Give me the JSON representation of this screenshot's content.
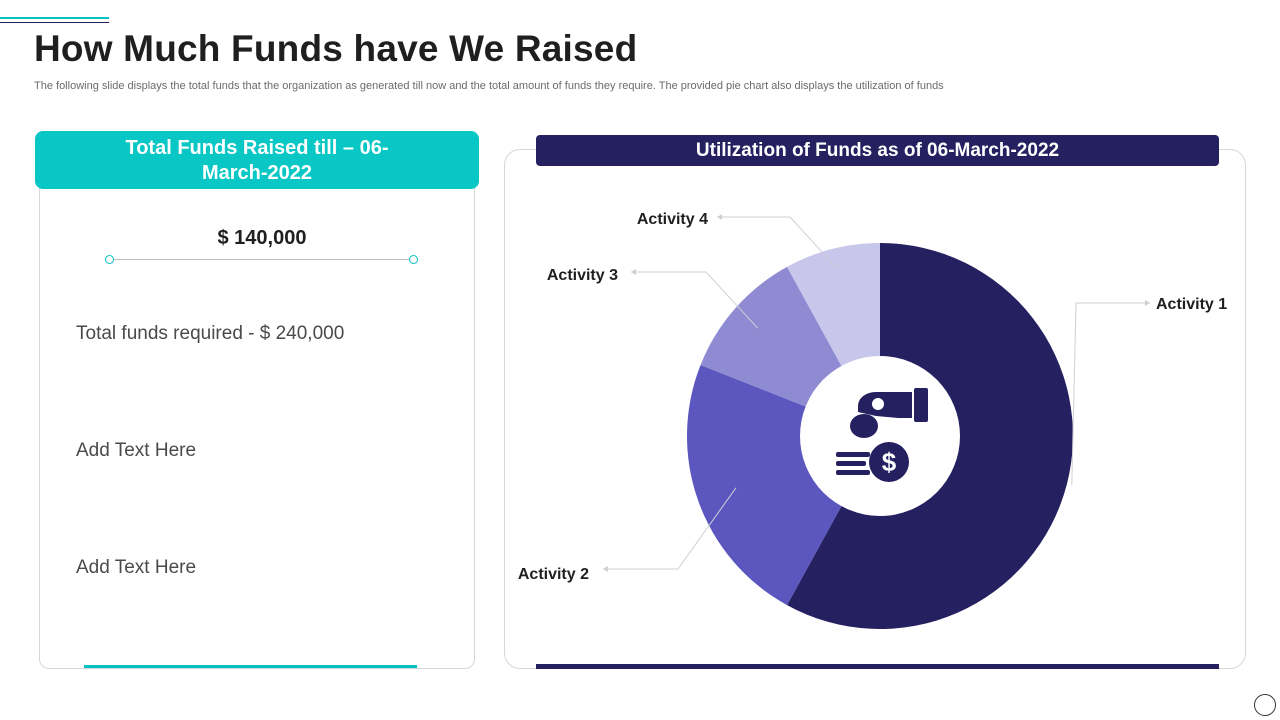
{
  "page": {
    "title": "How Much Funds have We Raised",
    "subtitle": "The following slide displays the total funds that the organization as generated till now and the total amount of funds they require. The provided pie chart also displays the utilization of funds"
  },
  "left_card": {
    "header_line1": "Total Funds Raised till  – 06-",
    "header_line2": "March-2022",
    "amount": "$ 140,000",
    "required": "Total funds required - $ 240,000",
    "text1": "Add Text Here",
    "text2": "Add Text Here"
  },
  "right_card": {
    "header": "Utilization of Funds as of 06-March-2022"
  },
  "colors": {
    "teal": "#08C7C5",
    "navy": "#252060"
  },
  "icons": {
    "center": "hand-coin-dollar-icon"
  },
  "chart_data": {
    "type": "pie",
    "style": "donut",
    "title": "Utilization of Funds as of 06-March-2022",
    "categories": [
      "Activity 1",
      "Activity 2",
      "Activity 3",
      "Activity 4"
    ],
    "values": [
      58,
      23,
      11,
      8
    ],
    "colors": [
      "#252060",
      "#5B57BF",
      "#8F8BD2",
      "#C8C6EA"
    ],
    "start_angle_deg": 0,
    "direction": "clockwise",
    "legend": "callout labels"
  }
}
